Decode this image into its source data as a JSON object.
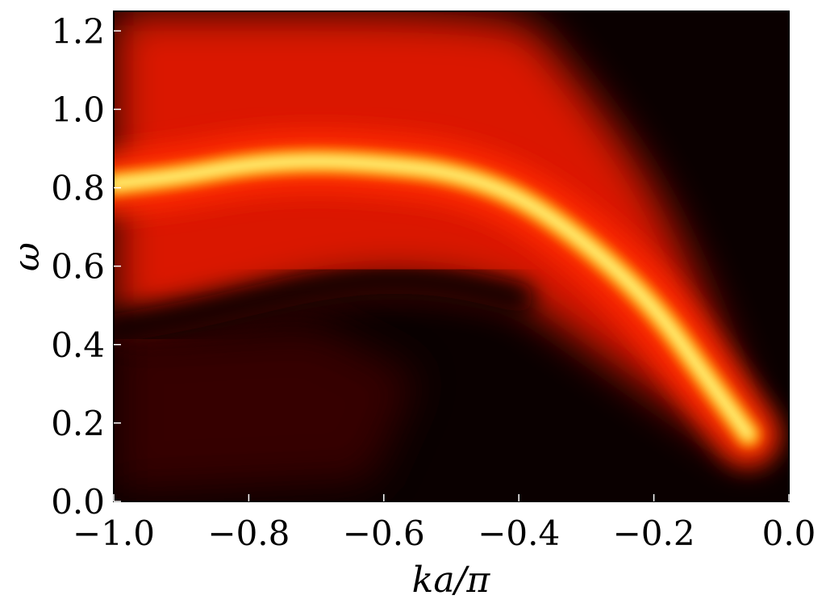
{
  "chart_data": {
    "type": "heatmap",
    "title": "",
    "xlabel": "ka/π",
    "ylabel": "ω",
    "xlim": [
      -1.0,
      0.0
    ],
    "ylim": [
      0.0,
      1.25
    ],
    "x_ticks": [
      "−1.0",
      "−0.8",
      "−0.6",
      "−0.4",
      "−0.2",
      "0.0"
    ],
    "x_tick_values": [
      -1.0,
      -0.8,
      -0.6,
      -0.4,
      -0.2,
      0.0
    ],
    "y_ticks": [
      "0.0",
      "0.2",
      "0.4",
      "0.6",
      "0.8",
      "1.0",
      "1.2"
    ],
    "y_tick_values": [
      0.0,
      0.2,
      0.4,
      0.6,
      0.8,
      1.0,
      1.2
    ],
    "colormap": "hot",
    "colors": {
      "background": "#0a0000",
      "low": "#3a0000",
      "mid": "#ff1a00",
      "high": "#ffff80"
    },
    "features": {
      "main_band_ridge": [
        {
          "x": -1.0,
          "y": 0.81
        },
        {
          "x": -0.9,
          "y": 0.83
        },
        {
          "x": -0.8,
          "y": 0.86
        },
        {
          "x": -0.7,
          "y": 0.87
        },
        {
          "x": -0.6,
          "y": 0.86
        },
        {
          "x": -0.5,
          "y": 0.84
        },
        {
          "x": -0.4,
          "y": 0.78
        },
        {
          "x": -0.3,
          "y": 0.66
        },
        {
          "x": -0.2,
          "y": 0.5
        },
        {
          "x": -0.12,
          "y": 0.31
        },
        {
          "x": -0.06,
          "y": 0.17
        }
      ],
      "dark_gap_ridge": [
        {
          "x": -1.0,
          "y": 0.44
        },
        {
          "x": -0.9,
          "y": 0.47
        },
        {
          "x": -0.8,
          "y": 0.51
        },
        {
          "x": -0.7,
          "y": 0.55
        },
        {
          "x": -0.6,
          "y": 0.57
        },
        {
          "x": -0.5,
          "y": 0.56
        },
        {
          "x": -0.4,
          "y": 0.52
        }
      ],
      "upper_continuum_edge": [
        {
          "x": -1.0,
          "y": 1.25
        },
        {
          "x": -0.4,
          "y": 1.25
        },
        {
          "x": -0.35,
          "y": 1.15
        },
        {
          "x": -0.28,
          "y": 1.0
        },
        {
          "x": -0.2,
          "y": 0.8
        },
        {
          "x": -0.12,
          "y": 0.5
        },
        {
          "x": -0.05,
          "y": 0.15
        }
      ]
    }
  }
}
